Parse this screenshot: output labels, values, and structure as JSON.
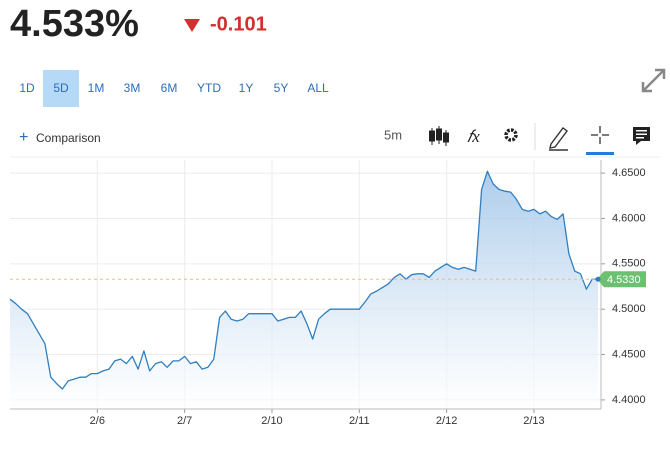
{
  "header": {
    "quote": "4.533%",
    "change": "-0.101"
  },
  "ranges": [
    "1D",
    "5D",
    "1M",
    "3M",
    "6M",
    "YTD",
    "1Y",
    "5Y",
    "ALL"
  ],
  "selected_range": "5D",
  "toolbar": {
    "comparison": "Comparison",
    "interval": "5m"
  },
  "chart_data": {
    "type": "area",
    "categories": [
      null,
      null,
      null,
      null,
      null,
      null,
      null,
      null,
      null,
      null,
      null,
      null,
      null,
      null,
      null,
      "2/6",
      null,
      null,
      null,
      null,
      null,
      null,
      null,
      null,
      null,
      null,
      null,
      null,
      null,
      null,
      "2/7",
      null,
      null,
      null,
      null,
      null,
      null,
      null,
      null,
      null,
      null,
      null,
      null,
      null,
      null,
      "2/10",
      null,
      null,
      null,
      null,
      null,
      null,
      null,
      null,
      null,
      null,
      null,
      null,
      null,
      null,
      "2/11",
      null,
      null,
      null,
      null,
      null,
      null,
      null,
      null,
      null,
      null,
      null,
      null,
      null,
      null,
      "2/12",
      null,
      null,
      null,
      null,
      null,
      null,
      null,
      null,
      null,
      null,
      null,
      null,
      null,
      null,
      "2/13",
      null,
      null,
      null,
      null,
      null,
      null,
      null,
      null,
      null,
      null,
      null
    ],
    "values": [
      4.511,
      4.506,
      4.5,
      4.495,
      4.484,
      4.473,
      4.462,
      4.425,
      4.418,
      4.412,
      4.421,
      4.423,
      4.425,
      4.425,
      4.429,
      4.429,
      4.432,
      4.434,
      4.443,
      4.445,
      4.44,
      4.448,
      4.434,
      4.454,
      4.432,
      4.44,
      4.442,
      4.436,
      4.443,
      4.443,
      4.448,
      4.44,
      4.442,
      4.434,
      4.436,
      4.445,
      4.491,
      4.498,
      4.489,
      4.487,
      4.489,
      4.495,
      4.495,
      4.495,
      4.495,
      4.495,
      4.487,
      4.489,
      4.491,
      4.491,
      4.498,
      4.484,
      4.467,
      4.489,
      4.495,
      4.5,
      4.5,
      4.5,
      4.5,
      4.5,
      4.5,
      4.508,
      4.517,
      4.52,
      4.524,
      4.528,
      4.535,
      4.539,
      4.533,
      4.538,
      4.539,
      4.539,
      4.535,
      4.542,
      4.546,
      4.55,
      4.546,
      4.544,
      4.546,
      4.544,
      4.542,
      4.632,
      4.652,
      4.638,
      4.632,
      4.63,
      4.629,
      4.621,
      4.61,
      4.608,
      4.61,
      4.605,
      4.608,
      4.602,
      4.599,
      4.605,
      4.561,
      4.542,
      4.539,
      4.522,
      4.533,
      4.533
    ],
    "color": "#2f7fc1",
    "ylim": [
      4.39,
      4.66
    ],
    "yticks": [
      {
        "value": 4.4,
        "label": "4.4000"
      },
      {
        "value": 4.45,
        "label": "4.4500"
      },
      {
        "value": 4.5,
        "label": "4.5000"
      },
      {
        "value": 4.55,
        "label": "4.5500"
      },
      {
        "value": 4.6,
        "label": "4.6000"
      },
      {
        "value": 4.65,
        "label": "4.6500"
      }
    ],
    "grid": true,
    "last_value": {
      "value": 4.533,
      "label": "4.5330",
      "color": "#6cc070"
    }
  }
}
